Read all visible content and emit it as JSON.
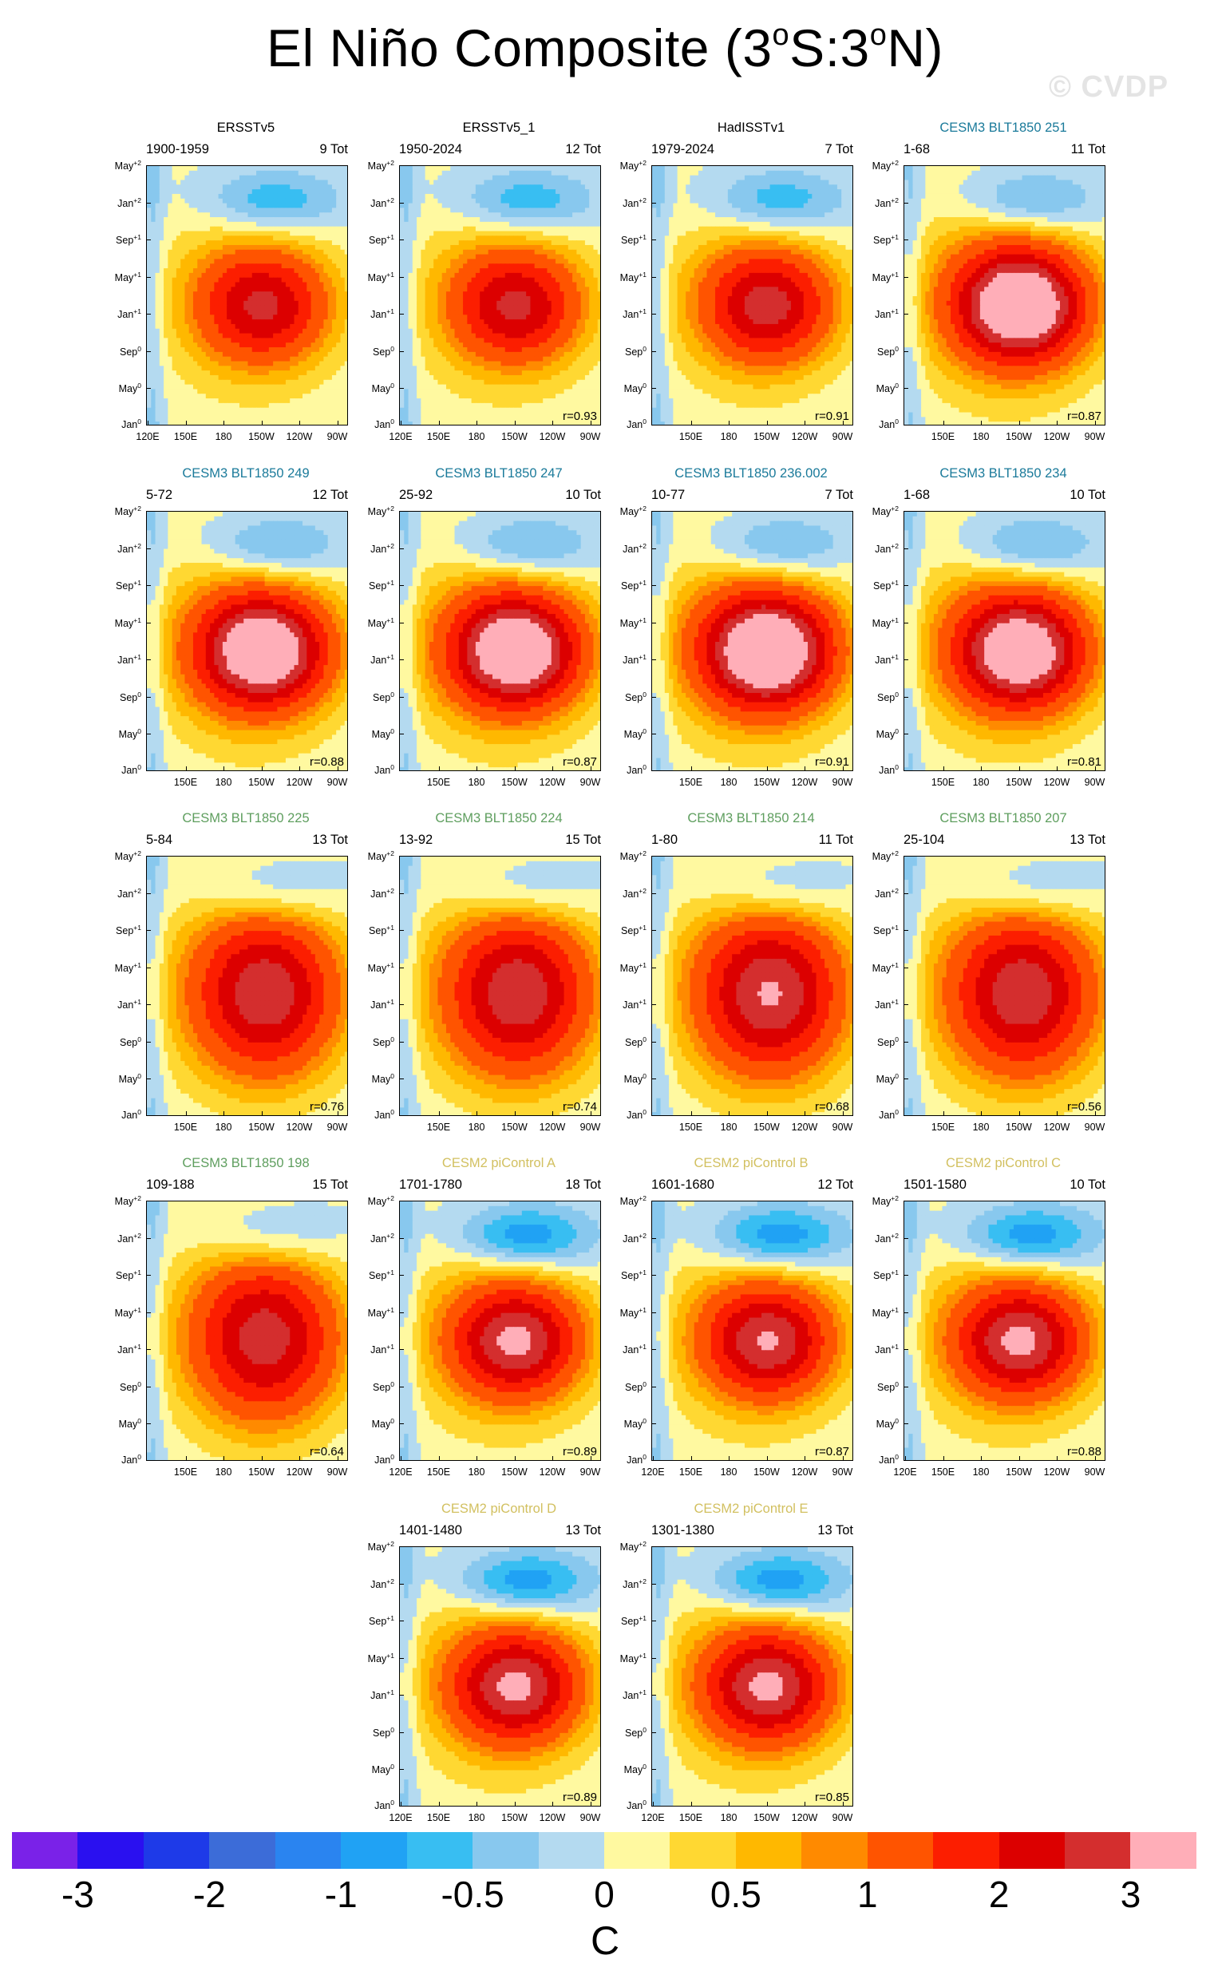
{
  "title": {
    "prefix": "El Niño Composite (3",
    "deg1": "o",
    "mid": "S:3",
    "deg2": "o",
    "suffix": "N)"
  },
  "watermark": "© CVDP",
  "colors": {
    "obs_title": "#000000",
    "cesm3_teal": "#1a7a9a",
    "cesm3_green": "#5e9e5e",
    "cesm2_khaki": "#d2c060"
  },
  "axes": {
    "y_ticks": [
      {
        "base": "May",
        "sup": "+2"
      },
      {
        "base": "Jan",
        "sup": "+2"
      },
      {
        "base": "Sep",
        "sup": "+1"
      },
      {
        "base": "May",
        "sup": "+1"
      },
      {
        "base": "Jan",
        "sup": "+1"
      },
      {
        "base": "Sep",
        "sup": "0"
      },
      {
        "base": "May",
        "sup": "0"
      },
      {
        "base": "Jan",
        "sup": "0"
      }
    ],
    "x_ticks_full": [
      "120E",
      "150E",
      "180",
      "150W",
      "120W",
      "90W"
    ],
    "x_ticks_short": [
      "150E",
      "180",
      "150W",
      "120W",
      "90W"
    ]
  },
  "chart_data": {
    "type": "heatmap",
    "description_units": "C",
    "panels": [
      {
        "name": "ERSSTv5",
        "years": "1900-1959",
        "tot": "9 Tot",
        "r": "",
        "group": "obs",
        "x_ticks": "full",
        "amp": 2.0
      },
      {
        "name": "ERSSTv5_1",
        "years": "1950-2024",
        "tot": "12 Tot",
        "r": "r=0.93",
        "group": "obs",
        "x_ticks": "full",
        "amp": 2.0
      },
      {
        "name": "HadISSTv1",
        "years": "1979-2024",
        "tot": "7 Tot",
        "r": "r=0.91",
        "group": "obs",
        "x_ticks": "short",
        "amp": 2.1
      },
      {
        "name": "CESM3 BLT1850 251",
        "years": "1-68",
        "tot": "11 Tot",
        "r": "r=0.87",
        "group": "cesm3_teal",
        "x_ticks": "short",
        "amp": 3.2
      },
      {
        "name": "CESM3 BLT1850 249",
        "years": "5-72",
        "tot": "12 Tot",
        "r": "r=0.88",
        "group": "cesm3_teal",
        "x_ticks": "short",
        "amp": 3.1
      },
      {
        "name": "CESM3 BLT1850 247",
        "years": "25-92",
        "tot": "10 Tot",
        "r": "r=0.87",
        "group": "cesm3_teal",
        "x_ticks": "short",
        "amp": 3.1
      },
      {
        "name": "CESM3 BLT1850 236.002",
        "years": "10-77",
        "tot": "7 Tot",
        "r": "r=0.91",
        "group": "cesm3_teal",
        "x_ticks": "short",
        "amp": 3.3
      },
      {
        "name": "CESM3 BLT1850 234",
        "years": "1-68",
        "tot": "10 Tot",
        "r": "r=0.81",
        "group": "cesm3_teal",
        "x_ticks": "short",
        "amp": 3.0
      },
      {
        "name": "CESM3 BLT1850 225",
        "years": "5-84",
        "tot": "13 Tot",
        "r": "r=0.76",
        "group": "cesm3_green",
        "x_ticks": "short",
        "amp": 2.2
      },
      {
        "name": "CESM3 BLT1850 224",
        "years": "13-92",
        "tot": "15 Tot",
        "r": "r=0.74",
        "group": "cesm3_green",
        "x_ticks": "short",
        "amp": 2.2
      },
      {
        "name": "CESM3 BLT1850 214",
        "years": "1-80",
        "tot": "11 Tot",
        "r": "r=0.68",
        "group": "cesm3_green",
        "x_ticks": "short",
        "amp": 2.3
      },
      {
        "name": "CESM3 BLT1850 207",
        "years": "25-104",
        "tot": "13 Tot",
        "r": "r=0.56",
        "group": "cesm3_green",
        "x_ticks": "short",
        "amp": 2.2
      },
      {
        "name": "CESM3 BLT1850 198",
        "years": "109-188",
        "tot": "15 Tot",
        "r": "r=0.64",
        "group": "cesm3_green",
        "x_ticks": "short",
        "amp": 2.1
      },
      {
        "name": "CESM2 piControl A",
        "years": "1701-1780",
        "tot": "18 Tot",
        "r": "r=0.89",
        "group": "cesm2_khaki",
        "x_ticks": "full",
        "amp": 2.4
      },
      {
        "name": "CESM2 piControl B",
        "years": "1601-1680",
        "tot": "12 Tot",
        "r": "r=0.87",
        "group": "cesm2_khaki",
        "x_ticks": "full",
        "amp": 2.3
      },
      {
        "name": "CESM2 piControl C",
        "years": "1501-1580",
        "tot": "10 Tot",
        "r": "r=0.88",
        "group": "cesm2_khaki",
        "x_ticks": "full",
        "amp": 2.4
      },
      {
        "name": "CESM2 piControl D",
        "years": "1401-1480",
        "tot": "13 Tot",
        "r": "r=0.89",
        "group": "cesm2_khaki",
        "x_ticks": "full",
        "amp": 2.4
      },
      {
        "name": "CESM2 piControl E",
        "years": "1301-1380",
        "tot": "13 Tot",
        "r": "r=0.85",
        "group": "cesm2_khaki",
        "x_ticks": "full",
        "amp": 2.4
      }
    ],
    "colorbar": {
      "levels": [
        -3,
        -2.5,
        -2,
        -1.5,
        -1,
        -0.75,
        -0.5,
        -0.25,
        0,
        0.25,
        0.5,
        0.75,
        1,
        1.5,
        2,
        2.5,
        3
      ],
      "labels": [
        "-3",
        "-2",
        "-1",
        "-0.5",
        "0",
        "0.5",
        "1",
        "2",
        "3"
      ],
      "colors": [
        "#7a22e8",
        "#2a10f0",
        "#1e3ae8",
        "#3c6cd8",
        "#2a84f0",
        "#20a2f4",
        "#38bef2",
        "#88c8ee",
        "#b4daf0",
        "#fff9a0",
        "#ffd832",
        "#ffb800",
        "#ff8a00",
        "#ff5400",
        "#fc1e00",
        "#dc0000",
        "#d42e2e",
        "#ffaeb8"
      ],
      "unit": "C"
    }
  }
}
